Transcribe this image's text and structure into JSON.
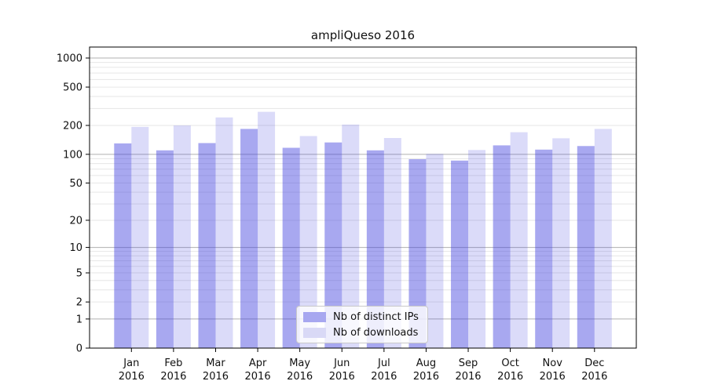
{
  "chart_data": {
    "type": "bar",
    "title": "ampliQueso 2016",
    "x_labels": [
      {
        "line1": "Jan",
        "line2": "2016"
      },
      {
        "line1": "Feb",
        "line2": "2016"
      },
      {
        "line1": "Mar",
        "line2": "2016"
      },
      {
        "line1": "Apr",
        "line2": "2016"
      },
      {
        "line1": "May",
        "line2": "2016"
      },
      {
        "line1": "Jun",
        "line2": "2016"
      },
      {
        "line1": "Jul",
        "line2": "2016"
      },
      {
        "line1": "Aug",
        "line2": "2016"
      },
      {
        "line1": "Sep",
        "line2": "2016"
      },
      {
        "line1": "Oct",
        "line2": "2016"
      },
      {
        "line1": "Nov",
        "line2": "2016"
      },
      {
        "line1": "Dec",
        "line2": "2016"
      }
    ],
    "series": [
      {
        "name": "Nb of distinct IPs",
        "values": [
          130,
          110,
          131,
          184,
          117,
          133,
          110,
          89,
          86,
          124,
          112,
          122
        ],
        "color": "#3e3edd",
        "fill_opacity": 0.45,
        "legend_color": "#a7a7f0"
      },
      {
        "name": "Nb of downloads",
        "values": [
          193,
          200,
          242,
          277,
          155,
          204,
          148,
          101,
          111,
          170,
          147,
          184
        ],
        "color": "#3e3edd",
        "fill_opacity": 0.19,
        "legend_color": "#d9d9f6"
      }
    ],
    "y_scale": "log1p",
    "ylim": [
      0,
      1000
    ],
    "y_ticks": [
      1000,
      500,
      200,
      100,
      50,
      20,
      10,
      5,
      2,
      1,
      0
    ],
    "grid": {
      "major_lines": [
        1,
        10,
        100,
        1000
      ],
      "minor_lines": [
        2,
        3,
        4,
        5,
        6,
        7,
        8,
        9,
        20,
        30,
        40,
        50,
        60,
        70,
        80,
        90,
        200,
        300,
        400,
        500,
        600,
        700,
        800,
        900
      ],
      "major_color": "#b0b0b0",
      "minor_color": "#e6e6e6"
    },
    "legend_position": "lower center",
    "axis_color": "#000000",
    "text_color": "#111111"
  }
}
